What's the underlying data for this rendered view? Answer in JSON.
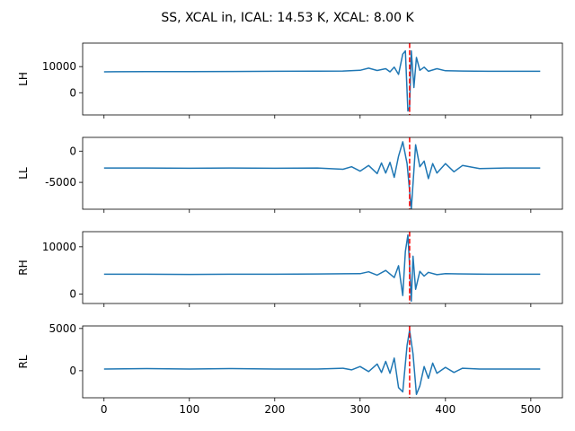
{
  "suptitle": "SS, XCAL in, ICAL: 14.53 K, XCAL: 8.00 K",
  "chart_data": {
    "type": "line",
    "title": "SS, XCAL in, ICAL: 14.53 K, XCAL: 8.00 K",
    "shared_x": true,
    "xlim": [
      -25,
      537
    ],
    "xticks": [
      0,
      100,
      200,
      300,
      400,
      500
    ],
    "series_color": "#1f77b4",
    "marker_color": "#ff0000",
    "vline_x": 358,
    "grid": false,
    "panels": [
      {
        "ylabel": "LH",
        "ylim": [
          -8500,
          19000
        ],
        "yticks": [
          0,
          10000
        ],
        "baseline": 8200,
        "x": [
          0,
          50,
          100,
          150,
          200,
          250,
          280,
          300,
          310,
          320,
          330,
          335,
          340,
          345,
          350,
          353,
          356,
          358,
          360,
          363,
          366,
          370,
          375,
          380,
          390,
          400,
          420,
          450,
          511
        ],
        "y": [
          8000,
          8100,
          8100,
          8150,
          8200,
          8250,
          8300,
          8600,
          9400,
          8500,
          9200,
          8000,
          9800,
          7000,
          14800,
          16000,
          -7000,
          -5500,
          16000,
          2000,
          13500,
          8600,
          9800,
          8200,
          9200,
          8400,
          8300,
          8200,
          8200
        ]
      },
      {
        "ylabel": "LL",
        "ylim": [
          -9300,
          2200
        ],
        "yticks": [
          0,
          -5000
        ],
        "baseline": -2700,
        "x": [
          0,
          50,
          100,
          150,
          200,
          250,
          280,
          290,
          300,
          310,
          320,
          325,
          330,
          335,
          340,
          345,
          350,
          355,
          360,
          365,
          370,
          375,
          380,
          385,
          390,
          400,
          410,
          420,
          440,
          470,
          511
        ],
        "y": [
          -2700,
          -2700,
          -2750,
          -2700,
          -2750,
          -2700,
          -2900,
          -2500,
          -3200,
          -2300,
          -3600,
          -1900,
          -3500,
          -1800,
          -4200,
          -800,
          1500,
          -2000,
          -9300,
          1000,
          -2500,
          -1600,
          -4400,
          -2000,
          -3500,
          -2000,
          -3300,
          -2300,
          -2800,
          -2700,
          -2700
        ]
      },
      {
        "ylabel": "RH",
        "ylim": [
          -2000,
          13200
        ],
        "yticks": [
          0,
          10000
        ],
        "baseline": 4200,
        "x": [
          0,
          50,
          100,
          150,
          200,
          250,
          300,
          310,
          320,
          330,
          340,
          345,
          350,
          353,
          356,
          358,
          360,
          362,
          365,
          370,
          375,
          380,
          390,
          400,
          450,
          511
        ],
        "y": [
          4200,
          4200,
          4150,
          4200,
          4200,
          4250,
          4300,
          4700,
          4000,
          5000,
          3500,
          6000,
          -300,
          9000,
          12500,
          6000,
          -1500,
          8000,
          1000,
          4800,
          3800,
          4600,
          4100,
          4300,
          4200,
          4200
        ]
      },
      {
        "ylabel": "RL",
        "ylim": [
          -3200,
          5300
        ],
        "yticks": [
          0,
          5000
        ],
        "baseline": 200,
        "x": [
          0,
          50,
          100,
          150,
          200,
          250,
          280,
          290,
          300,
          310,
          320,
          325,
          330,
          335,
          340,
          345,
          350,
          355,
          358,
          362,
          366,
          370,
          375,
          380,
          385,
          390,
          400,
          410,
          420,
          440,
          470,
          511
        ],
        "y": [
          200,
          250,
          200,
          250,
          200,
          200,
          300,
          100,
          500,
          -100,
          800,
          -200,
          1100,
          -300,
          1500,
          -2000,
          -2500,
          3000,
          4800,
          2000,
          -2800,
          -1800,
          500,
          -900,
          900,
          -300,
          400,
          -200,
          300,
          200,
          200,
          200
        ]
      }
    ]
  }
}
